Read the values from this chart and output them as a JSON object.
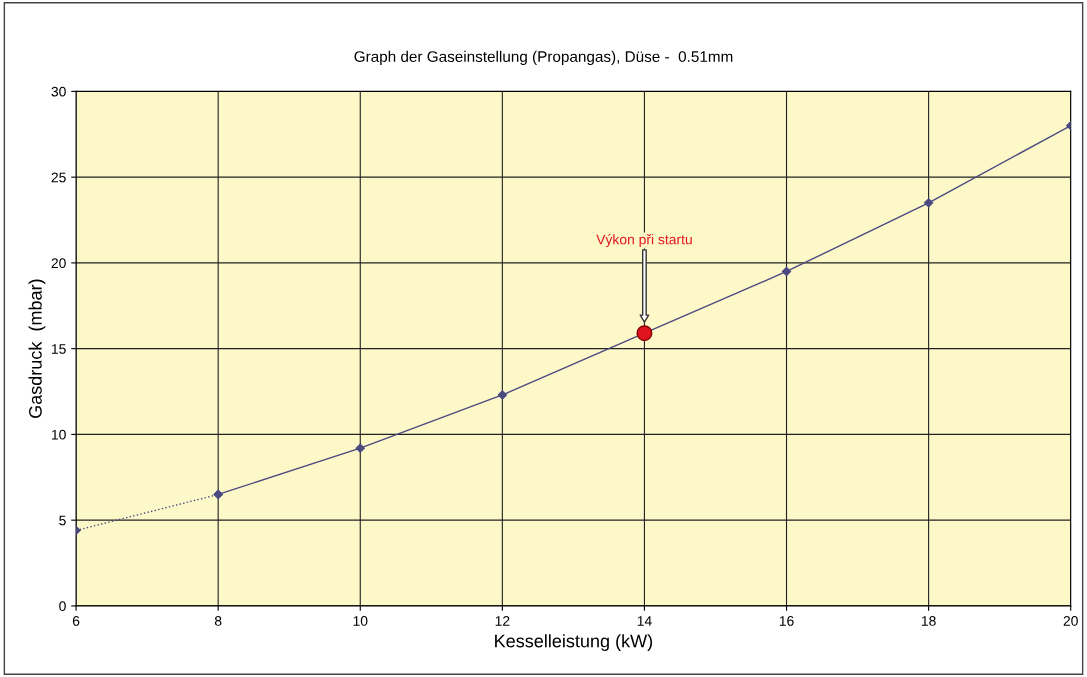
{
  "chart_data": {
    "type": "line",
    "title": "Graph der Gaseinstellung (Propangas), Düse -  0.51mm",
    "xlabel": "Kesselleistung (kW)",
    "ylabel": "Gasdruck  (mbar)",
    "series": [
      {
        "x": [
          6,
          8
        ],
        "values": [
          4.4,
          6.5
        ],
        "color": "#4a4a80",
        "line_style": "dotted",
        "marker": "diamond"
      },
      {
        "x": [
          8,
          10,
          12,
          14,
          16,
          18,
          20
        ],
        "values": [
          6.5,
          9.2,
          12.3,
          15.9,
          19.5,
          23.5,
          28
        ],
        "color": "#4a4a80",
        "line_style": "solid",
        "marker": "diamond"
      },
      {
        "type": "scatter",
        "x": [
          14
        ],
        "values": [
          15.9
        ],
        "color": "#e0141e",
        "marker": "circle"
      }
    ],
    "annotations": [
      "Výkon při startu"
    ],
    "xlim": [
      6,
      20
    ],
    "xticks": [
      6,
      8,
      10,
      12,
      14,
      16,
      18,
      20
    ],
    "ylim": [
      0,
      30
    ],
    "yticks": [
      0,
      5,
      10,
      15,
      20,
      25,
      30
    ],
    "grid": true,
    "legend": false
  }
}
